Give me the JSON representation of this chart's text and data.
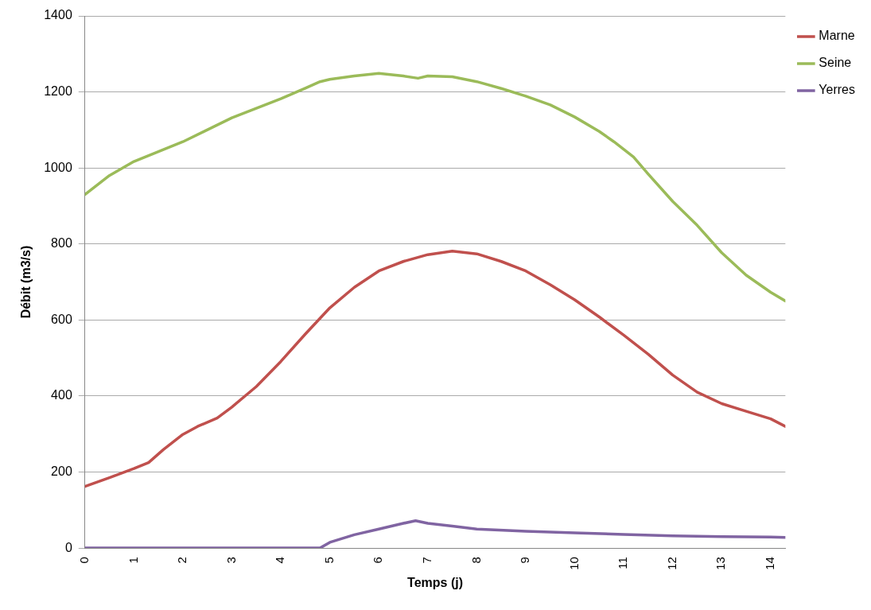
{
  "chart_data": {
    "type": "line",
    "xlabel": "Temps (j)",
    "ylabel": "Débit (m3/s)",
    "xlim": [
      0,
      14.3
    ],
    "xticks": [
      0,
      1,
      2,
      3,
      4,
      5,
      6,
      7,
      8,
      9,
      10,
      11,
      12,
      13,
      14
    ],
    "ylim": [
      0,
      1400
    ],
    "yticks": [
      0,
      200,
      400,
      600,
      800,
      1000,
      1200,
      1400
    ],
    "grid": "y",
    "legend": "top right",
    "marker": "none",
    "line_style": "solid",
    "series": [
      {
        "name": "Marne",
        "color": "#c0504d",
        "x": [
          0,
          0.5,
          1,
          1.3,
          1.6,
          2,
          2.3,
          2.7,
          3,
          3.5,
          4,
          4.5,
          5,
          5.5,
          6,
          6.5,
          7,
          7.5,
          8,
          8.5,
          9,
          9.5,
          10,
          10.5,
          11,
          11.5,
          12,
          12.5,
          13,
          13.5,
          14,
          14.3
        ],
        "values": [
          162,
          185,
          209,
          225,
          259,
          299,
          320,
          342,
          371,
          425,
          491,
          563,
          632,
          686,
          729,
          754,
          772,
          781,
          774,
          754,
          729,
          693,
          653,
          608,
          560,
          510,
          455,
          410,
          380,
          360,
          340,
          320
        ]
      },
      {
        "name": "Seine",
        "color": "#9bbb59",
        "x": [
          0,
          0.5,
          1,
          2,
          3,
          4,
          4.5,
          4.8,
          5,
          5.5,
          6,
          6.5,
          6.8,
          7,
          7.5,
          8,
          8.5,
          9,
          9.5,
          10,
          10.5,
          10.8,
          11.2,
          11.5,
          12,
          12.5,
          13,
          13.5,
          14,
          14.3
        ],
        "values": [
          930,
          980,
          1017,
          1069,
          1132,
          1182,
          1210,
          1227,
          1233,
          1242,
          1249,
          1242,
          1236,
          1242,
          1240,
          1227,
          1209,
          1189,
          1166,
          1134,
          1096,
          1069,
          1029,
          984,
          912,
          849,
          777,
          718,
          673,
          650
        ]
      },
      {
        "name": "Yerres",
        "color": "#8064a2",
        "x": [
          0,
          1,
          2,
          3,
          4,
          4.8,
          5,
          5.5,
          6,
          6.5,
          6.75,
          7,
          7.5,
          8,
          9,
          10,
          11,
          12,
          13,
          14,
          14.3
        ],
        "values": [
          0,
          0,
          0,
          0,
          0,
          0,
          15,
          35,
          50,
          65,
          72,
          65,
          58,
          50,
          44,
          40,
          36,
          32,
          30,
          29,
          28
        ]
      }
    ]
  }
}
